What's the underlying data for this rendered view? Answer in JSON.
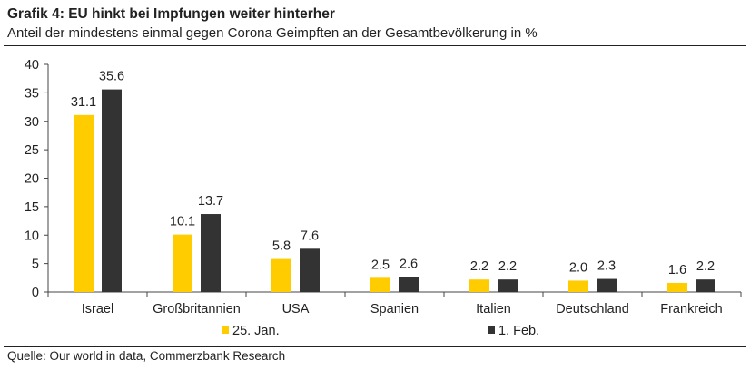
{
  "header": {
    "title": "Grafik 4: EU hinkt bei Impfungen weiter hinterher",
    "subtitle": "Anteil der mindestens einmal gegen Corona Geimpften an der Gesamtbevölkerung in %"
  },
  "footer": {
    "source": "Quelle: Our world in data, Commerzbank Research"
  },
  "colors": {
    "series_1": "#FFCC00",
    "series_2": "#333333",
    "axis": "#444444",
    "text": "#222222"
  },
  "chart_data": {
    "type": "bar",
    "title": "Grafik 4: EU hinkt bei Impfungen weiter hinterher",
    "xlabel": "",
    "ylabel": "",
    "ylim": [
      0,
      40
    ],
    "yticks": [
      "0",
      "5",
      "10",
      "15",
      "20",
      "25",
      "30",
      "35",
      "40"
    ],
    "categories": [
      "Israel",
      "Großbritannien",
      "USA",
      "Spanien",
      "Italien",
      "Deutschland",
      "Frankreich"
    ],
    "series": [
      {
        "name": "25. Jan.",
        "values": [
          31.1,
          10.1,
          5.8,
          2.5,
          2.2,
          2.0,
          1.6
        ],
        "labels": [
          "31.1",
          "10.1",
          "5.8",
          "2.5",
          "2.2",
          "2.0",
          "1.6"
        ]
      },
      {
        "name": "1. Feb.",
        "values": [
          35.6,
          13.7,
          7.6,
          2.6,
          2.2,
          2.3,
          2.2
        ],
        "labels": [
          "35.6",
          "13.7",
          "7.6",
          "2.6",
          "2.2",
          "2.3",
          "2.2"
        ]
      }
    ],
    "legend_position": "bottom",
    "grid": false
  }
}
